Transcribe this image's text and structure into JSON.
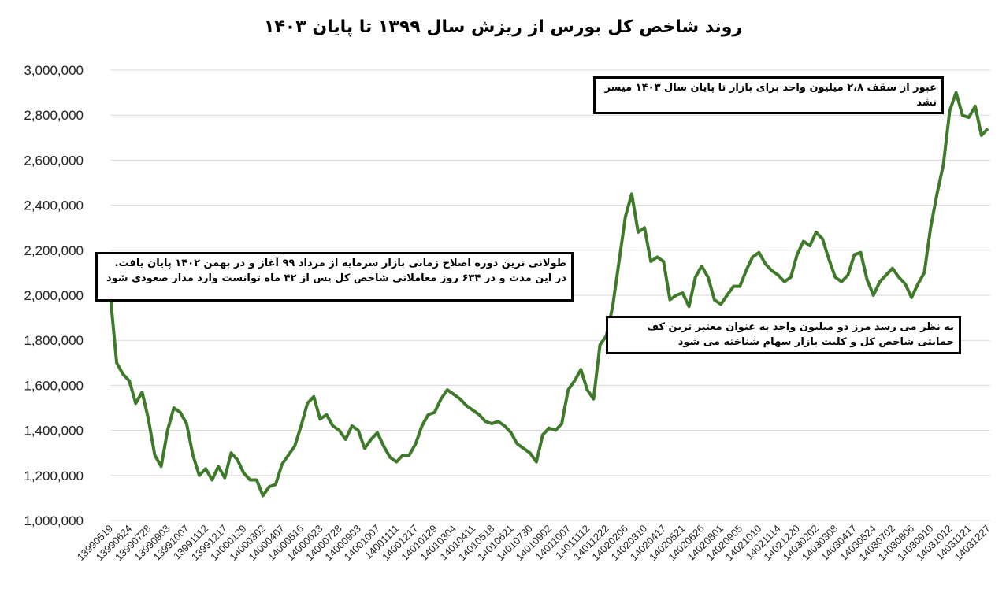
{
  "chart_data": {
    "type": "line",
    "title": "روند شاخص کل بورس از ریزش سال ۱۳۹۹ تا پایان ۱۴۰۳",
    "annotations": [
      "عبور از سقف ۲،۸ میلیون واحد برای بازار تا پایان سال ۱۴۰۳ میسر نشد",
      "طولانی ترین دوره اصلاح زمانی بازار سرمایه از مرداد ۹۹ آغاز و در بهمن ۱۴۰۲ پایان یافت. در این مدت و در ۶۳۴ روز معاملاتی شاخص کل پس از ۴۲ ماه توانست وارد مدار صعودی شود",
      "به نظر می رسد مرز دو میلیون واحد به عنوان معتبر ترین کف حمایتی شاخص کل و کلیت بازار سهام شناخته می شود"
    ],
    "categories": [
      "13990519",
      null,
      null,
      "13990624",
      null,
      null,
      "13990728",
      null,
      null,
      "13990903",
      null,
      null,
      "13991007",
      null,
      null,
      "13991112",
      null,
      null,
      "13991217",
      null,
      null,
      "14000129",
      null,
      null,
      "14000302",
      null,
      null,
      "14000407",
      null,
      null,
      "14000516",
      null,
      null,
      "14000623",
      null,
      null,
      "14000728",
      null,
      null,
      "14000903",
      null,
      null,
      "14001007",
      null,
      null,
      "14001111",
      null,
      null,
      "14001217",
      null,
      null,
      "14010129",
      null,
      null,
      "14010304",
      null,
      null,
      "14010411",
      null,
      null,
      "14010518",
      null,
      null,
      "14010621",
      null,
      null,
      "14010730",
      null,
      null,
      "14010902",
      null,
      null,
      "14011007",
      null,
      null,
      "14011112",
      null,
      null,
      "14011222",
      null,
      null,
      "14020206",
      null,
      null,
      "14020310",
      null,
      null,
      "14020417",
      null,
      null,
      "14020521",
      null,
      null,
      "14020626",
      null,
      null,
      "14020801",
      null,
      null,
      "14020905",
      null,
      null,
      "14021010",
      null,
      null,
      "14021114",
      null,
      null,
      "14021220",
      null,
      null,
      "14030202",
      null,
      null,
      "14030308",
      null,
      null,
      "14030417",
      null,
      null,
      "14030524",
      null,
      null,
      "14030702",
      null,
      null,
      "14030806",
      null,
      null,
      "14030910",
      null,
      null,
      "14031012",
      null,
      null,
      "14031121",
      null,
      null,
      "14031227"
    ],
    "series": [
      {
        "color": "#3f7a2b",
        "values": [
          2000000,
          1700000,
          1650000,
          1620000,
          1520000,
          1570000,
          1450000,
          1290000,
          1240000,
          1400000,
          1500000,
          1480000,
          1430000,
          1290000,
          1200000,
          1230000,
          1180000,
          1240000,
          1190000,
          1300000,
          1270000,
          1210000,
          1180000,
          1180000,
          1110000,
          1150000,
          1160000,
          1250000,
          1290000,
          1330000,
          1420000,
          1520000,
          1550000,
          1450000,
          1470000,
          1420000,
          1400000,
          1360000,
          1420000,
          1400000,
          1320000,
          1360000,
          1390000,
          1330000,
          1280000,
          1260000,
          1290000,
          1290000,
          1340000,
          1420000,
          1470000,
          1480000,
          1540000,
          1580000,
          1560000,
          1540000,
          1510000,
          1490000,
          1470000,
          1440000,
          1430000,
          1440000,
          1420000,
          1390000,
          1340000,
          1320000,
          1300000,
          1260000,
          1380000,
          1410000,
          1400000,
          1430000,
          1580000,
          1620000,
          1670000,
          1580000,
          1540000,
          1780000,
          1820000,
          1950000,
          2150000,
          2350000,
          2450000,
          2280000,
          2300000,
          2150000,
          2170000,
          2150000,
          1980000,
          2000000,
          2010000,
          1950000,
          2080000,
          2130000,
          2080000,
          1980000,
          1960000,
          2000000,
          2040000,
          2040000,
          2110000,
          2170000,
          2190000,
          2140000,
          2110000,
          2090000,
          2060000,
          2080000,
          2180000,
          2240000,
          2220000,
          2280000,
          2250000,
          2160000,
          2080000,
          2060000,
          2090000,
          2180000,
          2190000,
          2070000,
          2000000,
          2060000,
          2090000,
          2120000,
          2080000,
          2050000,
          1990000,
          2050000,
          2100000,
          2300000,
          2450000,
          2580000,
          2820000,
          2900000,
          2800000,
          2790000,
          2840000,
          2710000,
          2740000
        ]
      }
    ],
    "ylim": [
      1000000,
      3000000
    ],
    "yticks": [
      {
        "value": 1000000,
        "label": "1,000,000"
      },
      {
        "value": 1200000,
        "label": "1,200,000"
      },
      {
        "value": 1400000,
        "label": "1,400,000"
      },
      {
        "value": 1600000,
        "label": "1,600,000"
      },
      {
        "value": 1800000,
        "label": "1,800,000"
      },
      {
        "value": 2000000,
        "label": "2,000,000"
      },
      {
        "value": 2200000,
        "label": "2,200,000"
      },
      {
        "value": 2400000,
        "label": "2,400,000"
      },
      {
        "value": 2600000,
        "label": "2,600,000"
      },
      {
        "value": 2800000,
        "label": "2,800,000"
      },
      {
        "value": 3000000,
        "label": "3,000,000"
      }
    ],
    "grid": true
  }
}
